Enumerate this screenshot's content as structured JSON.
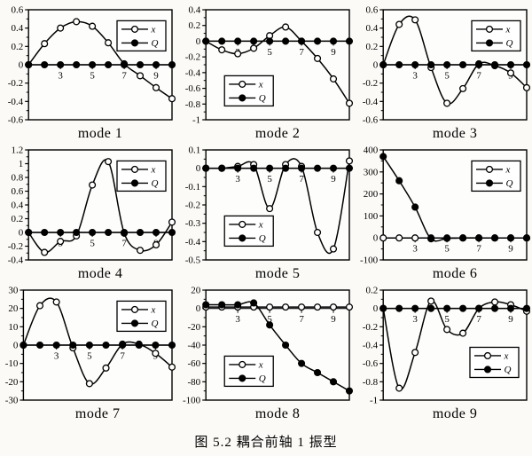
{
  "caption": "图 5.2  耦合前轴 1 振型",
  "colors": {
    "line": "#000000",
    "paper": "#fbfaf7",
    "plot_bg": "#fdfdfb"
  },
  "legend": {
    "x_label": "x",
    "q_label": "Q"
  },
  "chart_data": [
    {
      "type": "line",
      "title": "mode 1",
      "x": [
        1,
        2,
        3,
        4,
        5,
        6,
        7,
        8,
        9,
        10
      ],
      "xlim": [
        1,
        10
      ],
      "xticks": [
        3,
        5,
        7,
        9
      ],
      "ylim": [
        -0.6,
        0.6
      ],
      "ytick_labels": [
        "0.6",
        "0.4",
        "0.2",
        "0",
        "-0.2",
        "-0.4",
        "-0.6"
      ],
      "legend_pos": "top-right",
      "series": [
        {
          "name": "x",
          "marker": "open",
          "values": [
            0,
            0.23,
            0.4,
            0.47,
            0.42,
            0.24,
            0.01,
            -0.12,
            -0.25,
            -0.37
          ]
        },
        {
          "name": "Q",
          "marker": "filled",
          "values": [
            0,
            0,
            0,
            0,
            0,
            0,
            0,
            0,
            0,
            0
          ]
        }
      ]
    },
    {
      "type": "line",
      "title": "mode 2",
      "x": [
        1,
        2,
        3,
        4,
        5,
        6,
        7,
        8,
        9,
        10
      ],
      "xlim": [
        1,
        10
      ],
      "xticks": [
        3,
        5,
        7,
        9
      ],
      "ylim": [
        -1,
        0.4
      ],
      "ytick_labels": [
        "0.4",
        "0.2",
        "0",
        "-0.2",
        "-0.4",
        "-0.6",
        "-0.8",
        "-1"
      ],
      "legend_pos": "bottom-left",
      "series": [
        {
          "name": "x",
          "marker": "open",
          "values": [
            0,
            -0.11,
            -0.16,
            -0.09,
            0.07,
            0.18,
            0,
            -0.22,
            -0.48,
            -0.79
          ]
        },
        {
          "name": "Q",
          "marker": "filled",
          "values": [
            0,
            0,
            0,
            0,
            0,
            0,
            0,
            0,
            0,
            0
          ]
        }
      ]
    },
    {
      "type": "line",
      "title": "mode 3",
      "x": [
        1,
        2,
        3,
        4,
        5,
        6,
        7,
        8,
        9,
        10
      ],
      "xlim": [
        1,
        10
      ],
      "xticks": [
        3,
        5,
        7,
        9
      ],
      "ylim": [
        -0.6,
        0.6
      ],
      "ytick_labels": [
        "0.6",
        "0.4",
        "0.2",
        "0",
        "-0.2",
        "-0.4",
        "-0.6"
      ],
      "legend_pos": "top-right",
      "series": [
        {
          "name": "x",
          "marker": "open",
          "values": [
            0,
            0.44,
            0.49,
            -0.03,
            -0.42,
            -0.26,
            0.01,
            -0.01,
            -0.09,
            -0.25
          ]
        },
        {
          "name": "Q",
          "marker": "filled",
          "values": [
            0,
            0,
            0,
            0,
            0,
            0,
            0,
            0,
            0,
            0
          ]
        }
      ]
    },
    {
      "type": "line",
      "title": "mode 4",
      "x": [
        1,
        2,
        3,
        4,
        5,
        6,
        7,
        8,
        9,
        10
      ],
      "xlim": [
        1,
        10
      ],
      "xticks": [
        3,
        5,
        7,
        9
      ],
      "ylim": [
        -0.4,
        1.2
      ],
      "ytick_labels": [
        "1.2",
        "1",
        "0.8",
        "0.6",
        "0.4",
        "0.2",
        "0",
        "-0.2",
        "-0.4"
      ],
      "legend_pos": "top-right",
      "series": [
        {
          "name": "x",
          "marker": "open",
          "values": [
            0,
            -0.29,
            -0.13,
            -0.05,
            0.69,
            1.03,
            -0.01,
            -0.26,
            -0.18,
            0.15
          ]
        },
        {
          "name": "Q",
          "marker": "filled",
          "values": [
            0,
            0,
            0,
            0,
            0,
            0,
            0,
            0,
            0,
            0
          ]
        }
      ]
    },
    {
      "type": "line",
      "title": "mode 5",
      "x": [
        1,
        2,
        3,
        4,
        5,
        6,
        7,
        8,
        9,
        10
      ],
      "xlim": [
        1,
        10
      ],
      "xticks": [
        3,
        5,
        7,
        9
      ],
      "ylim": [
        -0.5,
        0.1
      ],
      "ytick_labels": [
        "0.1",
        "0",
        "-0.1",
        "-0.2",
        "-0.3",
        "-0.4",
        "-0.5"
      ],
      "legend_pos": "bottom-left",
      "series": [
        {
          "name": "x",
          "marker": "open",
          "values": [
            0,
            0,
            0.01,
            0.02,
            -0.22,
            0.02,
            0.01,
            -0.35,
            -0.44,
            0.04
          ]
        },
        {
          "name": "Q",
          "marker": "filled",
          "values": [
            0,
            0,
            0,
            0,
            0,
            0,
            0,
            0,
            0,
            0
          ]
        }
      ]
    },
    {
      "type": "line",
      "title": "mode 6",
      "x": [
        1,
        2,
        3,
        4,
        5,
        6,
        7,
        8,
        9,
        10
      ],
      "xlim": [
        1,
        10
      ],
      "xticks": [
        3,
        5,
        7,
        9
      ],
      "ylim": [
        -100,
        400
      ],
      "ytick_labels": [
        "400",
        "300",
        "200",
        "100",
        "0",
        "-100"
      ],
      "legend_pos": "top-right",
      "series": [
        {
          "name": "x",
          "marker": "open",
          "values": [
            0,
            0,
            0,
            0,
            0,
            0,
            0,
            0,
            0,
            0
          ]
        },
        {
          "name": "Q",
          "marker": "filled",
          "values": [
            370,
            260,
            140,
            -4,
            -2,
            0,
            0,
            0,
            0,
            0
          ]
        }
      ]
    },
    {
      "type": "line",
      "title": "mode 7",
      "x": [
        1,
        2,
        3,
        4,
        5,
        6,
        7,
        8,
        9,
        10
      ],
      "xlim": [
        1,
        10
      ],
      "xticks": [
        3,
        5,
        7,
        9
      ],
      "ylim": [
        -30,
        30
      ],
      "ytick_labels": [
        "30",
        "20",
        "10",
        "0",
        "-10",
        "-20",
        "-30"
      ],
      "legend_pos": "top-right",
      "series": [
        {
          "name": "x",
          "marker": "open",
          "values": [
            0,
            21.5,
            23.5,
            -1.5,
            -21,
            -12.5,
            0.5,
            0.5,
            -4.5,
            -12
          ]
        },
        {
          "name": "Q",
          "marker": "filled",
          "values": [
            0,
            0,
            0,
            0,
            0,
            0,
            0,
            0,
            0,
            0
          ]
        }
      ]
    },
    {
      "type": "line",
      "title": "mode 8",
      "x": [
        1,
        2,
        3,
        4,
        5,
        6,
        7,
        8,
        9,
        10
      ],
      "xlim": [
        1,
        10
      ],
      "xticks": [
        3,
        5,
        7,
        9
      ],
      "ylim": [
        -100,
        20
      ],
      "ytick_labels": [
        "20",
        "0",
        "-20",
        "-40",
        "-60",
        "-80",
        "-100"
      ],
      "legend_pos": "bottom-left",
      "series": [
        {
          "name": "x",
          "marker": "open",
          "values": [
            1.5,
            1.5,
            1.5,
            1.5,
            1.5,
            1.5,
            1.5,
            1.5,
            1.5,
            1.5
          ]
        },
        {
          "name": "Q",
          "marker": "filled",
          "values": [
            4,
            4,
            4,
            6,
            -18,
            -40,
            -60,
            -70,
            -80,
            -90
          ]
        }
      ]
    },
    {
      "type": "line",
      "title": "mode 9",
      "x": [
        1,
        2,
        3,
        4,
        5,
        6,
        7,
        8,
        9,
        10
      ],
      "xlim": [
        1,
        10
      ],
      "xticks": [
        3,
        5,
        7,
        9
      ],
      "ylim": [
        -1,
        0.2
      ],
      "ytick_labels": [
        "0.2",
        "0",
        "-0.2",
        "-0.4",
        "-0.6",
        "-0.8",
        "-1"
      ],
      "legend_pos": "bottom-right",
      "series": [
        {
          "name": "x",
          "marker": "open",
          "values": [
            0,
            -0.87,
            -0.48,
            0.08,
            -0.23,
            -0.27,
            0,
            0.07,
            0.04,
            -0.03
          ]
        },
        {
          "name": "Q",
          "marker": "filled",
          "values": [
            0,
            0,
            0,
            0,
            0,
            0,
            0,
            0,
            0,
            0
          ]
        }
      ]
    }
  ]
}
